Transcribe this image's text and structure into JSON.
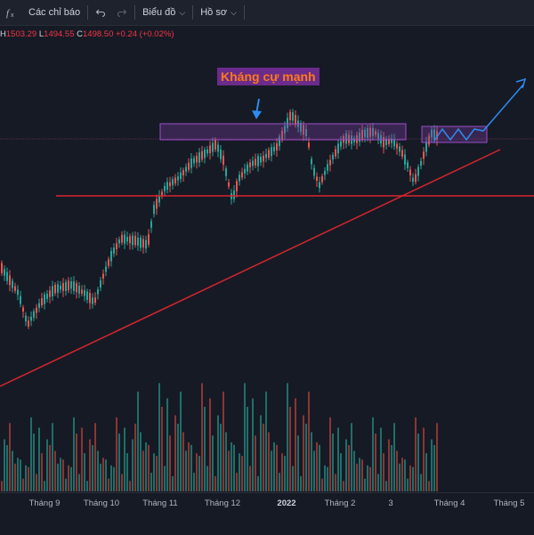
{
  "toolbar": {
    "fx_icon": "fx-function-icon",
    "indicators_label": "Các chỉ báo",
    "undo_icon": "undo-icon",
    "redo_icon": "redo-icon",
    "chart_label": "Biểu đồ",
    "profile_label": "Hồ sơ"
  },
  "ohlc": {
    "h_label": "H",
    "h_value": "1503.29",
    "l_label": "L",
    "l_value": "1494.55",
    "c_label": "C",
    "c_value": "1498.50",
    "change": "+0.24 (+0.02%)"
  },
  "annotation": {
    "text": "Kháng cự mạnh"
  },
  "colors": {
    "up": "#26a69a",
    "down": "#ef5350",
    "trendline": "#d6262e",
    "zone": "#7b3fa0",
    "projection": "#2d8cf0",
    "note_text": "#ff7a1a"
  },
  "xaxis": {
    "labels": [
      {
        "text": "Tháng 9",
        "bold": false
      },
      {
        "text": "Tháng 10",
        "bold": false
      },
      {
        "text": "Tháng 11",
        "bold": false
      },
      {
        "text": "Tháng 12",
        "bold": false
      },
      {
        "text": "2022",
        "bold": true
      },
      {
        "text": "Tháng 2",
        "bold": false
      },
      {
        "text": "3",
        "bold": false
      },
      {
        "text": "Tháng 4",
        "bold": false
      },
      {
        "text": "Tháng 5",
        "bold": false
      }
    ]
  }
}
